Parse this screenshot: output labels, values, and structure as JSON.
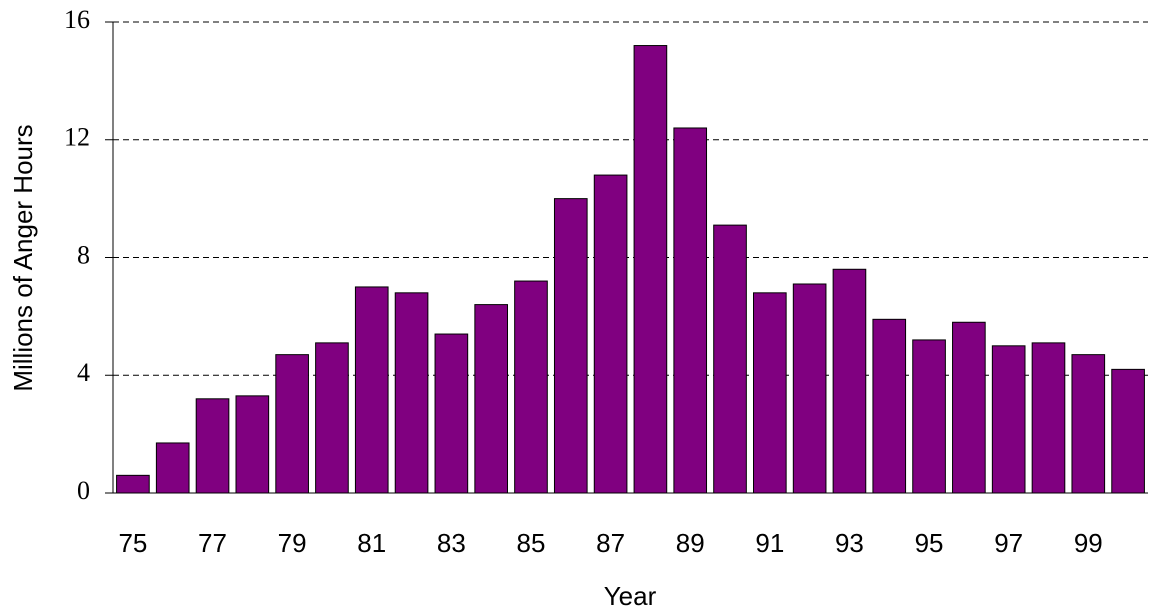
{
  "chart_data": {
    "type": "bar",
    "x_label": "Year",
    "y_label": "Millions of Anger Hours",
    "categories": [
      "75",
      null,
      "77",
      null,
      "79",
      null,
      "81",
      null,
      "83",
      null,
      "85",
      null,
      "87",
      null,
      "89",
      null,
      "91",
      null,
      "93",
      null,
      "95",
      null,
      "97",
      null,
      "99",
      null
    ],
    "values": [
      0.6,
      1.7,
      3.2,
      3.3,
      4.7,
      5.1,
      7.0,
      6.8,
      5.4,
      6.4,
      7.2,
      10.0,
      10.8,
      15.2,
      12.4,
      9.1,
      6.8,
      7.1,
      7.6,
      5.9,
      5.2,
      5.8,
      5.0,
      5.1,
      4.7,
      4.2
    ],
    "color": "#800080",
    "ylim": [
      0,
      16
    ],
    "yticks": [
      0,
      4,
      8,
      12,
      16
    ],
    "grid": true
  }
}
